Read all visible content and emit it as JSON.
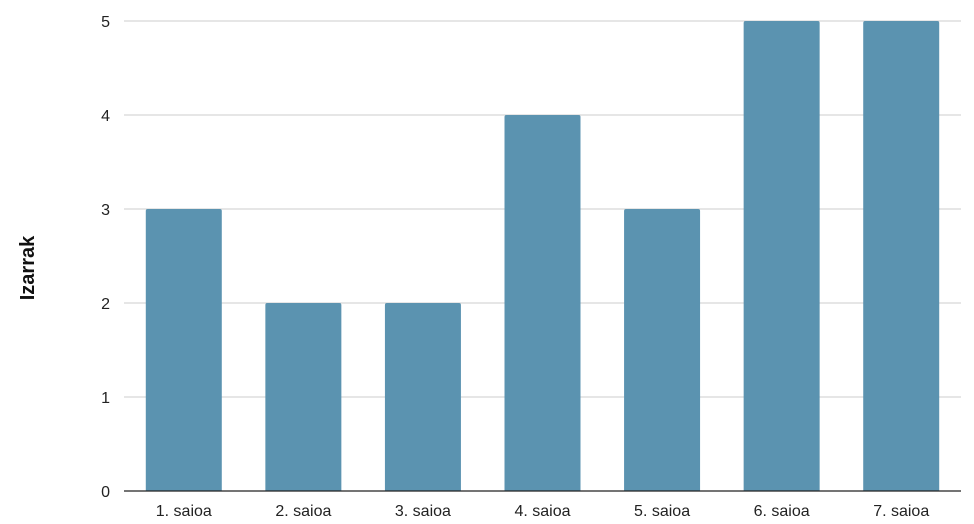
{
  "chart_data": {
    "type": "bar",
    "title": "",
    "xlabel": "",
    "ylabel": "Izarrak",
    "categories": [
      "1. saioa",
      "2. saioa",
      "3. saioa",
      "4. saioa",
      "5. saioa",
      "6. saioa",
      "7. saioa"
    ],
    "values": [
      3,
      2,
      2,
      4,
      3,
      5,
      5
    ],
    "ylim": [
      0,
      5
    ],
    "yticks": [
      "0",
      "1",
      "2",
      "3",
      "4",
      "5"
    ],
    "grid": true,
    "legend": "none",
    "bar_color": "#5b93b0",
    "grid_color": "#cccccc"
  }
}
